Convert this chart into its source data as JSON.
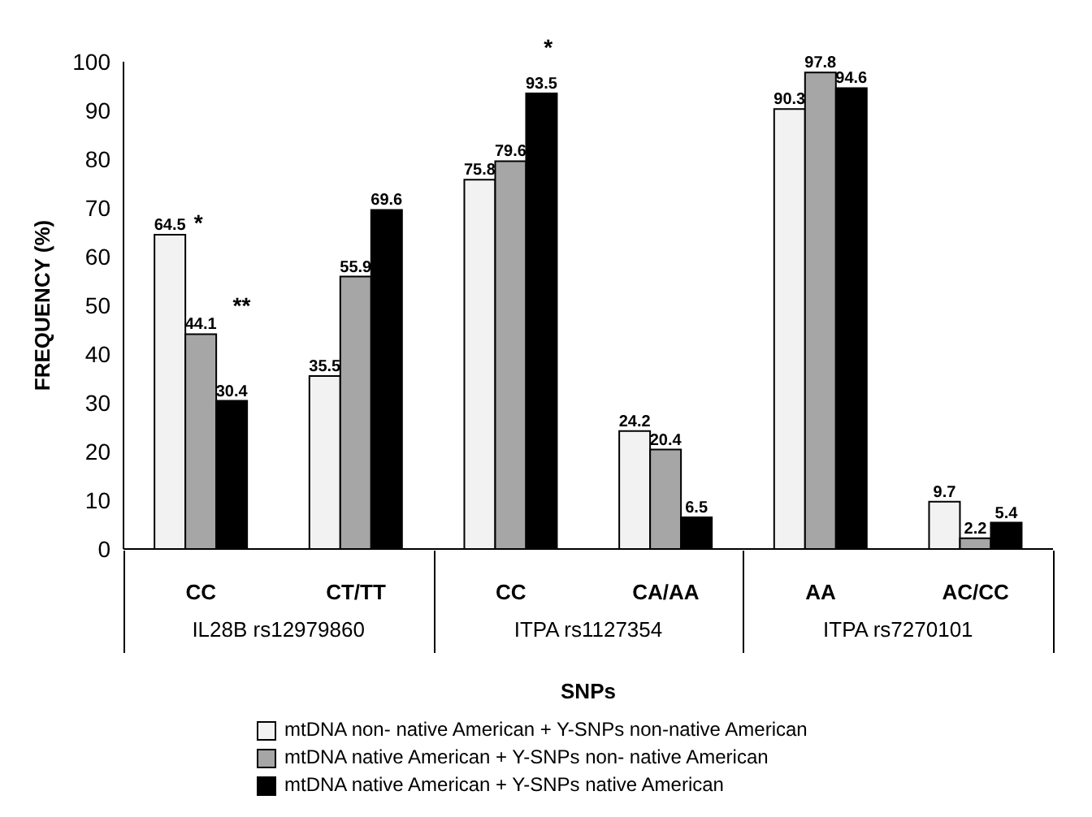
{
  "chart_data": {
    "type": "bar",
    "xlabel": "SNPs",
    "ylabel": "FREQUENCY (%)",
    "categories": [
      "CC",
      "CT/TT",
      "CC",
      "CA/AA",
      "AA",
      "AC/CC"
    ],
    "series": [
      {
        "name": "mtDNA non- native American + Y-SNPs non-native American",
        "color": "#f2f2f2",
        "values": [
          64.5,
          35.5,
          75.8,
          24.2,
          90.3,
          9.7
        ]
      },
      {
        "name": "mtDNA native American + Y-SNPs non- native American",
        "color": "#a6a6a6",
        "values": [
          44.1,
          55.9,
          79.6,
          20.4,
          97.8,
          2.2
        ]
      },
      {
        "name": "mtDNA native American + Y-SNPs  native American",
        "color": "#000000",
        "values": [
          30.4,
          69.6,
          93.5,
          6.5,
          94.6,
          5.4
        ]
      }
    ],
    "ylim": [
      0,
      100
    ],
    "yticks": [
      0,
      10,
      20,
      30,
      40,
      50,
      60,
      70,
      80,
      90,
      100
    ],
    "data_labels": true,
    "grid": false,
    "legend": "bottom",
    "annotations": [
      "IL28B rs12979860",
      "ITPA rs1127354",
      "ITPA rs7270101",
      "*",
      "**",
      "*"
    ]
  }
}
